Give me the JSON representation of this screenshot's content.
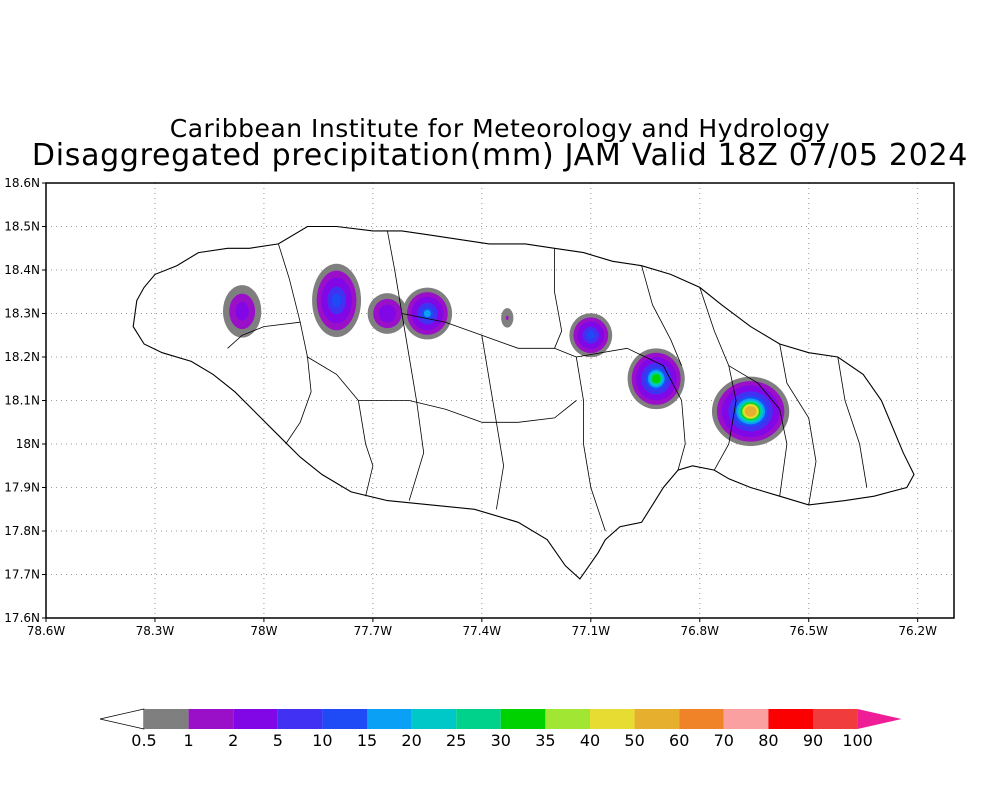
{
  "title_line1": "Caribbean Institute for Meteorology and Hydrology",
  "title_line2": "Disaggregated precipitation(mm) JAM Valid 18Z 07/05 2024",
  "map": {
    "lon_range": [
      -78.6,
      -76.1
    ],
    "lat_range": [
      17.6,
      18.6
    ],
    "grid": true,
    "lon_ticks": [
      {
        "value": -78.6,
        "label": "78.6W"
      },
      {
        "value": -78.3,
        "label": "78.3W"
      },
      {
        "value": -78.0,
        "label": "78W"
      },
      {
        "value": -77.7,
        "label": "77.7W"
      },
      {
        "value": -77.4,
        "label": "77.4W"
      },
      {
        "value": -77.1,
        "label": "77.1W"
      },
      {
        "value": -76.8,
        "label": "76.8W"
      },
      {
        "value": -76.5,
        "label": "76.5W"
      },
      {
        "value": -76.2,
        "label": "76.2W"
      }
    ],
    "lat_ticks": [
      {
        "value": 18.6,
        "label": "18.6N"
      },
      {
        "value": 18.5,
        "label": "18.5N"
      },
      {
        "value": 18.4,
        "label": "18.4N"
      },
      {
        "value": 18.3,
        "label": "18.3N"
      },
      {
        "value": 18.2,
        "label": "18.2N"
      },
      {
        "value": 18.1,
        "label": "18.1N"
      },
      {
        "value": 18.0,
        "label": "18N"
      },
      {
        "value": 17.9,
        "label": "17.9N"
      },
      {
        "value": 17.8,
        "label": "17.8N"
      },
      {
        "value": 17.7,
        "label": "17.7N"
      },
      {
        "value": 17.6,
        "label": "17.6N"
      }
    ],
    "coastline_lonlat": [
      [
        -78.36,
        18.27
      ],
      [
        -78.35,
        18.33
      ],
      [
        -78.33,
        18.36
      ],
      [
        -78.3,
        18.39
      ],
      [
        -78.24,
        18.41
      ],
      [
        -78.18,
        18.44
      ],
      [
        -78.1,
        18.45
      ],
      [
        -78.04,
        18.45
      ],
      [
        -77.96,
        18.46
      ],
      [
        -77.88,
        18.5
      ],
      [
        -77.8,
        18.5
      ],
      [
        -77.7,
        18.49
      ],
      [
        -77.62,
        18.49
      ],
      [
        -77.54,
        18.48
      ],
      [
        -77.46,
        18.47
      ],
      [
        -77.38,
        18.46
      ],
      [
        -77.28,
        18.46
      ],
      [
        -77.2,
        18.45
      ],
      [
        -77.12,
        18.44
      ],
      [
        -77.04,
        18.42
      ],
      [
        -76.96,
        18.41
      ],
      [
        -76.88,
        18.39
      ],
      [
        -76.8,
        18.36
      ],
      [
        -76.74,
        18.32
      ],
      [
        -76.66,
        18.27
      ],
      [
        -76.58,
        18.23
      ],
      [
        -76.5,
        18.21
      ],
      [
        -76.42,
        18.2
      ],
      [
        -76.35,
        18.16
      ],
      [
        -76.3,
        18.1
      ],
      [
        -76.27,
        18.04
      ],
      [
        -76.24,
        17.98
      ],
      [
        -76.21,
        17.93
      ],
      [
        -76.23,
        17.9
      ],
      [
        -76.32,
        17.88
      ],
      [
        -76.4,
        17.87
      ],
      [
        -76.5,
        17.86
      ],
      [
        -76.58,
        17.88
      ],
      [
        -76.66,
        17.9
      ],
      [
        -76.72,
        17.92
      ],
      [
        -76.76,
        17.94
      ],
      [
        -76.82,
        17.95
      ],
      [
        -76.86,
        17.94
      ],
      [
        -76.9,
        17.9
      ],
      [
        -76.93,
        17.86
      ],
      [
        -76.96,
        17.82
      ],
      [
        -77.02,
        17.81
      ],
      [
        -77.06,
        17.78
      ],
      [
        -77.08,
        17.75
      ],
      [
        -77.13,
        17.69
      ],
      [
        -77.17,
        17.72
      ],
      [
        -77.22,
        17.78
      ],
      [
        -77.3,
        17.82
      ],
      [
        -77.42,
        17.85
      ],
      [
        -77.54,
        17.86
      ],
      [
        -77.66,
        17.87
      ],
      [
        -77.76,
        17.89
      ],
      [
        -77.84,
        17.93
      ],
      [
        -77.9,
        17.97
      ],
      [
        -77.96,
        18.02
      ],
      [
        -78.02,
        18.07
      ],
      [
        -78.08,
        18.12
      ],
      [
        -78.14,
        18.16
      ],
      [
        -78.2,
        18.19
      ],
      [
        -78.28,
        18.21
      ],
      [
        -78.33,
        18.23
      ],
      [
        -78.36,
        18.27
      ]
    ],
    "parish_lines_lonlat": [
      [
        [
          -77.96,
          18.46
        ],
        [
          -77.93,
          18.38
        ],
        [
          -77.9,
          18.28
        ],
        [
          -77.88,
          18.2
        ],
        [
          -77.87,
          18.12
        ],
        [
          -77.9,
          18.05
        ],
        [
          -77.94,
          18.0
        ]
      ],
      [
        [
          -77.9,
          18.28
        ],
        [
          -78.0,
          18.27
        ],
        [
          -78.06,
          18.25
        ],
        [
          -78.1,
          18.22
        ]
      ],
      [
        [
          -77.88,
          18.2
        ],
        [
          -77.8,
          18.16
        ],
        [
          -77.74,
          18.1
        ],
        [
          -77.72,
          18.0
        ],
        [
          -77.7,
          17.95
        ],
        [
          -77.72,
          17.88
        ]
      ],
      [
        [
          -77.66,
          18.49
        ],
        [
          -77.64,
          18.4
        ],
        [
          -77.62,
          18.3
        ],
        [
          -77.6,
          18.2
        ],
        [
          -77.58,
          18.1
        ],
        [
          -77.56,
          17.98
        ],
        [
          -77.6,
          17.87
        ]
      ],
      [
        [
          -77.74,
          18.1
        ],
        [
          -77.6,
          18.1
        ],
        [
          -77.5,
          18.08
        ],
        [
          -77.4,
          18.05
        ]
      ],
      [
        [
          -77.62,
          18.3
        ],
        [
          -77.5,
          18.28
        ],
        [
          -77.4,
          18.25
        ],
        [
          -77.3,
          18.22
        ],
        [
          -77.2,
          18.22
        ],
        [
          -77.14,
          18.2
        ]
      ],
      [
        [
          -77.2,
          18.45
        ],
        [
          -77.2,
          18.35
        ],
        [
          -77.18,
          18.26
        ],
        [
          -77.2,
          18.22
        ]
      ],
      [
        [
          -77.14,
          18.2
        ],
        [
          -77.12,
          18.1
        ],
        [
          -77.12,
          18.0
        ],
        [
          -77.1,
          17.9
        ],
        [
          -77.06,
          17.8
        ]
      ],
      [
        [
          -77.4,
          18.05
        ],
        [
          -77.3,
          18.05
        ],
        [
          -77.2,
          18.06
        ],
        [
          -77.14,
          18.1
        ]
      ],
      [
        [
          -77.14,
          18.2
        ],
        [
          -77.0,
          18.22
        ],
        [
          -76.9,
          18.18
        ],
        [
          -76.85,
          18.1
        ],
        [
          -76.84,
          18.0
        ],
        [
          -76.86,
          17.94
        ]
      ],
      [
        [
          -76.96,
          18.41
        ],
        [
          -76.93,
          18.32
        ],
        [
          -76.88,
          18.24
        ],
        [
          -76.85,
          18.18
        ]
      ],
      [
        [
          -76.8,
          18.36
        ],
        [
          -76.76,
          18.26
        ],
        [
          -76.72,
          18.18
        ],
        [
          -76.7,
          18.1
        ],
        [
          -76.72,
          18.0
        ],
        [
          -76.76,
          17.94
        ]
      ],
      [
        [
          -76.72,
          18.18
        ],
        [
          -76.64,
          18.14
        ],
        [
          -76.58,
          18.08
        ],
        [
          -76.56,
          18.0
        ],
        [
          -76.58,
          17.88
        ]
      ],
      [
        [
          -76.58,
          18.23
        ],
        [
          -76.56,
          18.14
        ],
        [
          -76.5,
          18.06
        ],
        [
          -76.48,
          17.96
        ],
        [
          -76.5,
          17.86
        ]
      ],
      [
        [
          -76.42,
          18.2
        ],
        [
          -76.4,
          18.1
        ],
        [
          -76.36,
          18.0
        ],
        [
          -76.34,
          17.9
        ]
      ],
      [
        [
          -77.4,
          18.25
        ],
        [
          -77.38,
          18.15
        ],
        [
          -77.36,
          18.05
        ],
        [
          -77.34,
          17.95
        ],
        [
          -77.36,
          17.85
        ]
      ]
    ]
  },
  "precip_cells": [
    {
      "lon": -78.06,
      "lat": 18.305,
      "rx": 0.07,
      "ry": 0.08,
      "peak_mm": 3
    },
    {
      "lon": -77.8,
      "lat": 18.33,
      "rx": 0.08,
      "ry": 0.1,
      "peak_mm": 12
    },
    {
      "lon": -77.66,
      "lat": 18.3,
      "rx": 0.07,
      "ry": 0.06,
      "peak_mm": 4
    },
    {
      "lon": -77.55,
      "lat": 18.3,
      "rx": 0.08,
      "ry": 0.07,
      "peak_mm": 15
    },
    {
      "lon": -77.33,
      "lat": 18.29,
      "rx": 0.03,
      "ry": 0.04,
      "peak_mm": 1
    },
    {
      "lon": -77.1,
      "lat": 18.25,
      "rx": 0.07,
      "ry": 0.06,
      "peak_mm": 12
    },
    {
      "lon": -76.92,
      "lat": 18.15,
      "rx": 0.09,
      "ry": 0.08,
      "peak_mm": 32
    },
    {
      "lon": -76.66,
      "lat": 18.075,
      "rx": 0.12,
      "ry": 0.09,
      "peak_mm": 55
    }
  ],
  "colorbar": {
    "levels": [
      "0.5",
      "1",
      "2",
      "5",
      "10",
      "15",
      "20",
      "25",
      "30",
      "35",
      "40",
      "50",
      "60",
      "70",
      "80",
      "90",
      "100"
    ],
    "thresholds": [
      0.5,
      1,
      2,
      5,
      10,
      15,
      20,
      25,
      30,
      35,
      40,
      50,
      60,
      70,
      80,
      90,
      100
    ],
    "colors": [
      "#7f7f7f",
      "#9a0fc8",
      "#8207e6",
      "#4131f2",
      "#1e4bf5",
      "#0aa0f5",
      "#00c8c8",
      "#00d28c",
      "#00d200",
      "#a0e632",
      "#e6dc32",
      "#e6af2d",
      "#f08228",
      "#faa0a0",
      "#fa0000",
      "#f03c3c"
    ],
    "low_color": "#ffffff",
    "high_color": "#f01e96"
  }
}
